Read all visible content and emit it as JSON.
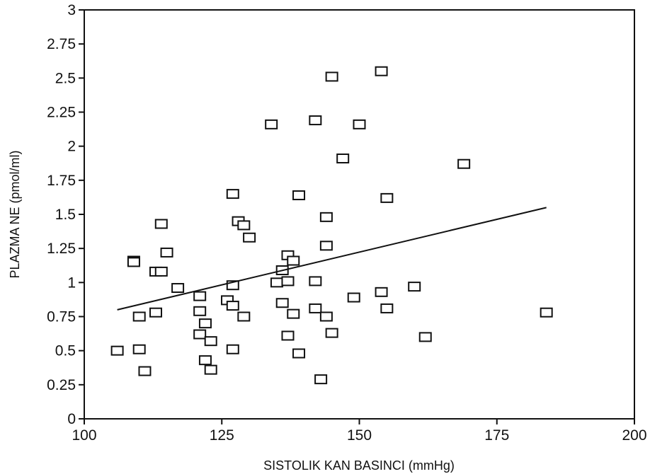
{
  "chart_data": {
    "type": "scatter",
    "title": "",
    "xlabel": "SISTOLIK KAN BASINCI (mmHg)",
    "ylabel": "PLAZMA NE (pmol/ml)",
    "xlim": [
      100,
      200
    ],
    "ylim": [
      0,
      3
    ],
    "xticks": [
      100,
      125,
      150,
      175,
      200
    ],
    "xtick_labels": [
      "100",
      "125",
      "150",
      "175",
      "200"
    ],
    "yticks": [
      0,
      0.25,
      0.5,
      0.75,
      1,
      1.25,
      1.5,
      1.75,
      2,
      2.25,
      2.5,
      2.75,
      3
    ],
    "ytick_labels": [
      "0",
      "0.25",
      "0.5",
      "0.75",
      "1",
      "1.25",
      "1.5",
      "1.75",
      "2",
      "2.25",
      "2.5",
      "2.75",
      "3"
    ],
    "grid": false,
    "marker": "open-square",
    "series": [
      {
        "points": [
          [
            106,
            0.5
          ],
          [
            109,
            1.16
          ],
          [
            109,
            1.15
          ],
          [
            110,
            0.75
          ],
          [
            110,
            0.51
          ],
          [
            111,
            0.35
          ],
          [
            113,
            1.08
          ],
          [
            113,
            0.78
          ],
          [
            114,
            1.43
          ],
          [
            114,
            1.08
          ],
          [
            115,
            1.22
          ],
          [
            117,
            0.96
          ],
          [
            121,
            0.9
          ],
          [
            121,
            0.79
          ],
          [
            121,
            0.62
          ],
          [
            122,
            0.7
          ],
          [
            122,
            0.43
          ],
          [
            123,
            0.57
          ],
          [
            123,
            0.36
          ],
          [
            126,
            0.87
          ],
          [
            127,
            1.65
          ],
          [
            127,
            0.98
          ],
          [
            127,
            0.83
          ],
          [
            127,
            0.51
          ],
          [
            128,
            1.45
          ],
          [
            129,
            1.42
          ],
          [
            129,
            0.75
          ],
          [
            130,
            1.33
          ],
          [
            134,
            2.16
          ],
          [
            135,
            1.0
          ],
          [
            136,
            1.09
          ],
          [
            136,
            0.85
          ],
          [
            137,
            1.2
          ],
          [
            137,
            1.01
          ],
          [
            137,
            0.61
          ],
          [
            138,
            1.16
          ],
          [
            138,
            0.77
          ],
          [
            139,
            1.64
          ],
          [
            139,
            0.48
          ],
          [
            142,
            2.19
          ],
          [
            142,
            1.01
          ],
          [
            142,
            0.81
          ],
          [
            143,
            0.29
          ],
          [
            144,
            1.48
          ],
          [
            144,
            1.27
          ],
          [
            144,
            0.75
          ],
          [
            145,
            2.51
          ],
          [
            145,
            0.63
          ],
          [
            147,
            1.91
          ],
          [
            149,
            0.89
          ],
          [
            150,
            2.16
          ],
          [
            154,
            2.55
          ],
          [
            154,
            0.93
          ],
          [
            155,
            1.62
          ],
          [
            155,
            0.81
          ],
          [
            160,
            0.97
          ],
          [
            162,
            0.6
          ],
          [
            169,
            1.87
          ],
          [
            184,
            0.78
          ]
        ]
      }
    ],
    "trend_line": {
      "x": [
        106,
        184
      ],
      "y": [
        0.8,
        1.55
      ]
    }
  }
}
